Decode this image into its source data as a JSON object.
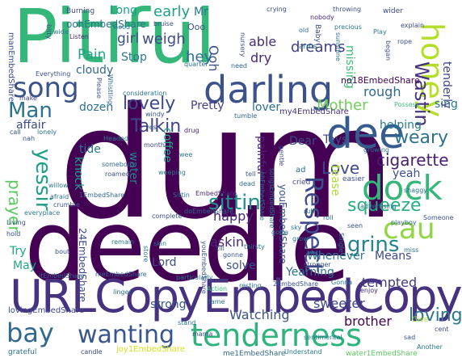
{
  "words": [
    {
      "text": "dum",
      "color": "#440154"
    },
    {
      "text": "deedle",
      "color": "#440154"
    },
    {
      "text": "Pitiful",
      "color": "#35b779"
    },
    {
      "text": "URLCopyEmbedCopy",
      "color": "#46327e"
    },
    {
      "text": "dee",
      "color": "#365c8d"
    },
    {
      "text": "dock",
      "color": "#35b779"
    },
    {
      "text": "darling",
      "color": "#3b528b"
    },
    {
      "text": "honey",
      "color": "#b5de2b"
    },
    {
      "text": "tenderness",
      "color": "#2eb37c"
    },
    {
      "text": "song",
      "color": "#3b528b"
    },
    {
      "text": "cau",
      "color": "#90d743"
    },
    {
      "text": "bay",
      "color": "#31688e"
    },
    {
      "text": "wanting",
      "color": "#39568c"
    },
    {
      "text": "Respect",
      "color": "#3e4a89"
    },
    {
      "text": "Wastin",
      "color": "#46337e"
    },
    {
      "text": "Man",
      "color": "#2c728e"
    },
    {
      "text": "lovely",
      "color": "#3e4989"
    },
    {
      "text": "sittin",
      "color": "#21918c"
    },
    {
      "text": "grins",
      "color": "#26828e"
    },
    {
      "text": "yessir",
      "color": "#1f9e89"
    },
    {
      "text": "squeeze",
      "color": "#29af7f"
    },
    {
      "text": "prayer",
      "color": "#5ec962"
    },
    {
      "text": "Talkin",
      "color": "#414487"
    },
    {
      "text": "loving",
      "color": "#2a788e"
    },
    {
      "text": "weary",
      "color": "#2c728e"
    },
    {
      "text": "cigarette",
      "color": "#481f70"
    },
    {
      "text": "Love",
      "color": "#3f4788"
    },
    {
      "text": "Mother",
      "color": "#6ece58"
    },
    {
      "text": "dreams",
      "color": "#424086"
    },
    {
      "text": "Pain",
      "color": "#20a386"
    },
    {
      "text": "girl",
      "color": "#3b528b"
    },
    {
      "text": "weigh",
      "color": "#3e4a89"
    },
    {
      "text": "hey",
      "color": "#2d708e"
    },
    {
      "text": "Long",
      "color": "#1e9b8a"
    },
    {
      "text": "early",
      "color": "#1fa088"
    },
    {
      "text": "Mr",
      "color": "#2a788e"
    },
    {
      "text": "sing",
      "color": "#2a788e"
    },
    {
      "text": "able",
      "color": "#472c7a"
    },
    {
      "text": "dry",
      "color": "#482677"
    },
    {
      "text": "Ooh",
      "color": "#3b528b"
    },
    {
      "text": "missing",
      "color": "#3dbc74"
    },
    {
      "text": "rough",
      "color": "#31688e"
    },
    {
      "text": "cloudy",
      "color": "#31688e"
    },
    {
      "text": "Stop",
      "color": "#2a788e"
    },
    {
      "text": "dozen",
      "color": "#2c728e"
    },
    {
      "text": "affair",
      "color": "#3e4989"
    },
    {
      "text": "Pretty",
      "color": "#433e85"
    },
    {
      "text": "lover",
      "color": "#2c728e"
    },
    {
      "text": "Toys",
      "color": "#3e4989"
    },
    {
      "text": "tenderly",
      "color": "#3e4989"
    },
    {
      "text": "helping",
      "color": "#287c8e"
    },
    {
      "text": "happy",
      "color": "#482878"
    },
    {
      "text": "Watching",
      "color": "#3b528b"
    },
    {
      "text": "sweeter",
      "color": "#404688"
    },
    {
      "text": "brother",
      "color": "#440154"
    },
    {
      "text": "strong",
      "color": "#3b528b"
    },
    {
      "text": "askin",
      "color": "#482878"
    },
    {
      "text": "Lord",
      "color": "#3e4a89"
    },
    {
      "text": "solve",
      "color": "#3b528b"
    },
    {
      "text": "tempted",
      "color": "#443983"
    },
    {
      "text": "Yearning",
      "color": "#2e6e8e"
    },
    {
      "text": "Whenever",
      "color": "#2a788e"
    },
    {
      "text": "Means",
      "color": "#3e4989"
    },
    {
      "text": "Try",
      "color": "#22a785"
    },
    {
      "text": "May",
      "color": "#22a785"
    },
    {
      "text": "tide",
      "color": "#2a788e"
    },
    {
      "text": "knock",
      "color": "#1fa088"
    },
    {
      "text": "yeah",
      "color": "#3b528b"
    },
    {
      "text": "Dear",
      "color": "#3e4989"
    },
    {
      "text": "tease",
      "color": "#addc30"
    },
    {
      "text": "water",
      "color": "#26828e"
    },
    {
      "text": "coffee",
      "color": "#22a785"
    },
    {
      "text": "painful",
      "color": "#482878"
    },
    {
      "text": "youEmbedShare",
      "color": "#3b528b"
    },
    {
      "text": "24EmbedShare",
      "color": "#3e4989"
    },
    {
      "text": "no18EmbedShare",
      "color": "#440154"
    },
    {
      "text": "my4EmbedShare",
      "color": "#46327e"
    },
    {
      "text": "oohEmbedShare",
      "color": "#2c728e"
    },
    {
      "text": "manEmbedShare",
      "color": "#3b528b"
    },
    {
      "text": "lovingEmbedShare",
      "color": "#3e4989"
    },
    {
      "text": "joy1EmbedShare",
      "color": "#d8e219"
    },
    {
      "text": "me1EmbedShare",
      "color": "#31688e"
    },
    {
      "text": "water1EmbedShare",
      "color": "#5ec962"
    },
    {
      "text": "meEmbedShare",
      "color": "#31688e"
    },
    {
      "text": "itEmbedShare",
      "color": "#31688e"
    },
    {
      "text": "1EmbedShare",
      "color": "#31688e"
    },
    {
      "text": "EmbedShare",
      "color": "#482677"
    },
    {
      "text": "ohEmbedShare",
      "color": "#2a788e"
    },
    {
      "text": "songsEmbedShare",
      "color": "#2c728e"
    },
    {
      "text": "doEmbedShare",
      "color": "#31688e"
    },
    {
      "text": "youEmbedShare",
      "color": "#3b528b"
    },
    {
      "text": "2EmbedShare",
      "color": "#3b528b"
    },
    {
      "text": "Burning",
      "color": "#3e4989"
    },
    {
      "text": "Everything",
      "color": "#3b528b"
    },
    {
      "text": "Listen",
      "color": "#482878"
    },
    {
      "text": "Ooo",
      "color": "#3b528b"
    },
    {
      "text": "need",
      "color": "#31688e"
    },
    {
      "text": "drug",
      "color": "#481f70"
    },
    {
      "text": "crying",
      "color": "#3b528b"
    },
    {
      "text": "throwing",
      "color": "#3b528b"
    },
    {
      "text": "precious",
      "color": "#2a788e"
    },
    {
      "text": "nobody",
      "color": "#482677"
    },
    {
      "text": "Baby",
      "color": "#3e4989"
    },
    {
      "text": "arms",
      "color": "#2c728e"
    },
    {
      "text": "old",
      "color": "#2c728e"
    },
    {
      "text": "wider",
      "color": "#3e4989"
    },
    {
      "text": "Possess",
      "color": "#3dbc74"
    },
    {
      "text": "growing",
      "color": "#2c728e"
    },
    {
      "text": "cried",
      "color": "#3e4989"
    },
    {
      "text": "easier",
      "color": "#3b528b"
    },
    {
      "text": "shaggy",
      "color": "#2a788e"
    },
    {
      "text": "advertising",
      "color": "#2c728e"
    },
    {
      "text": "playboy",
      "color": "#31688e"
    },
    {
      "text": "Someone",
      "color": "#3b528b"
    },
    {
      "text": "explain",
      "color": "#3e4989"
    },
    {
      "text": "seen",
      "color": "#3b528b"
    },
    {
      "text": "roll",
      "color": "#2c728e"
    },
    {
      "text": "grow",
      "color": "#2a788e"
    },
    {
      "text": "stronger",
      "color": "#3b528b"
    },
    {
      "text": "enjoy",
      "color": "#482878"
    },
    {
      "text": "sad",
      "color": "#3b528b"
    },
    {
      "text": "cent",
      "color": "#3e4989"
    },
    {
      "text": "Another",
      "color": "#2a788e"
    },
    {
      "text": "Give",
      "color": "#b5de2b"
    },
    {
      "text": "sentimental",
      "color": "#2a788e"
    },
    {
      "text": "Understand",
      "color": "#2a788e"
    },
    {
      "text": "candle",
      "color": "#3e4989"
    },
    {
      "text": "grateful",
      "color": "#2c728e"
    },
    {
      "text": "linger",
      "color": "#2c728e"
    },
    {
      "text": "stand",
      "color": "#2c728e"
    },
    {
      "text": "fame",
      "color": "#2a788e"
    },
    {
      "text": "mama",
      "color": "#3e4989"
    },
    {
      "text": "resting",
      "color": "#2a788e"
    },
    {
      "text": "particularly",
      "color": "#2a788e"
    },
    {
      "text": "remain",
      "color": "#2a788e"
    },
    {
      "text": "gonne",
      "color": "#3b528b"
    },
    {
      "text": "thirsty",
      "color": "#2a788e"
    },
    {
      "text": "till",
      "color": "#3b528b"
    },
    {
      "text": "gotta",
      "color": "#2a788e"
    },
    {
      "text": "complete",
      "color": "#3b528b"
    },
    {
      "text": "Living",
      "color": "#3b528b"
    },
    {
      "text": "everyplace",
      "color": "#2a788e"
    },
    {
      "text": "crumble",
      "color": "#3b528b"
    },
    {
      "text": "afraid",
      "color": "#2c728e"
    },
    {
      "text": "willow",
      "color": "#2a788e"
    },
    {
      "text": "roamed",
      "color": "#3b528b"
    },
    {
      "text": "somebody",
      "color": "#31688e"
    },
    {
      "text": "Headed",
      "color": "#2a788e"
    },
    {
      "text": "month",
      "color": "#3e4989"
    },
    {
      "text": "weeping",
      "color": "#2a788e"
    },
    {
      "text": "consideration",
      "color": "#2a788e"
    },
    {
      "text": "Whistling",
      "color": "#31688e"
    },
    {
      "text": "Please",
      "color": "#3b528b"
    },
    {
      "text": "quarter",
      "color": "#2c728e"
    },
    {
      "text": "tumble",
      "color": "#31688e"
    },
    {
      "text": "windy",
      "color": "#3b528b"
    },
    {
      "text": "yes",
      "color": "#3b528b"
    },
    {
      "text": "wee",
      "color": "#2a788e"
    },
    {
      "text": "rub",
      "color": "#2c728e"
    },
    {
      "text": "bout",
      "color": "#3b528b"
    },
    {
      "text": "hold",
      "color": "#3e4989"
    },
    {
      "text": "bitty",
      "color": "#3b528b"
    },
    {
      "text": "Good",
      "color": "#2a788e"
    },
    {
      "text": "make",
      "color": "#3e4989"
    },
    {
      "text": "call",
      "color": "#3b528b"
    },
    {
      "text": "nah",
      "color": "#3b528b"
    },
    {
      "text": "lonely",
      "color": "#2c728e"
    },
    {
      "text": "nursery",
      "color": "#3b528b"
    },
    {
      "text": "bruise",
      "color": "#3b528b"
    },
    {
      "text": "wide",
      "color": "#2a788e"
    },
    {
      "text": "Play",
      "color": "#2a788e"
    },
    {
      "text": "began",
      "color": "#3b528b"
    },
    {
      "text": "sunshine",
      "color": "#2c728e"
    },
    {
      "text": "rope",
      "color": "#3b528b"
    },
    {
      "text": "Sittin",
      "color": "#2c728e"
    },
    {
      "text": "Action",
      "color": "#3dbc74"
    },
    {
      "text": "Gonna",
      "color": "#2a788e"
    },
    {
      "text": "sky",
      "color": "#2a788e"
    },
    {
      "text": "ad",
      "color": "#2c728e"
    },
    {
      "text": "Single",
      "color": "#2c728e"
    },
    {
      "text": "tell",
      "color": "#3b528b"
    },
    {
      "text": "dead",
      "color": "#2c728e"
    },
    {
      "text": "miss",
      "color": "#2c728e"
    },
    {
      "text": "gentle",
      "color": "#3e4989"
    },
    {
      "text": "skin",
      "color": "#2a788e"
    },
    {
      "text": "store",
      "color": "#2c728e"
    }
  ]
}
